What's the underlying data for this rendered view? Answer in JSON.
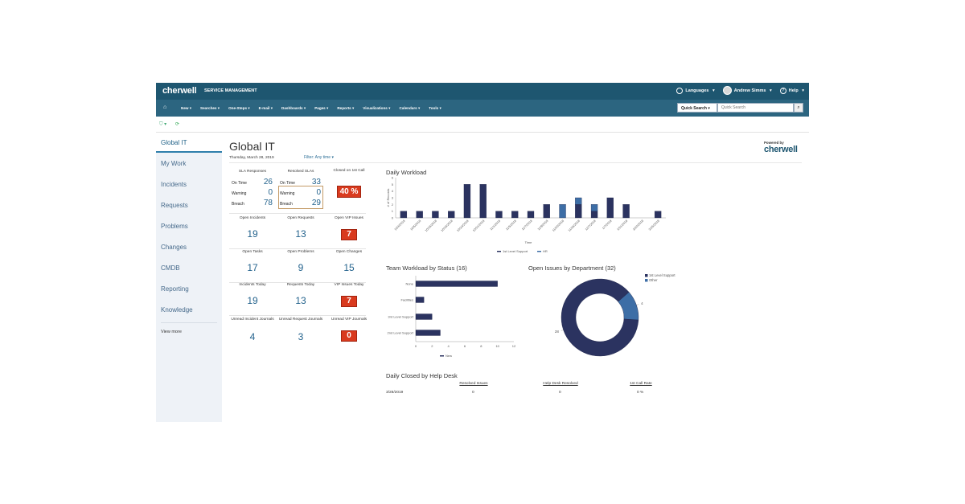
{
  "app": {
    "logo": "cherwell",
    "product": "SERVICE MANAGEMENT",
    "languages": "Languages",
    "user": "Andrew Simms",
    "help": "Help"
  },
  "nav": {
    "items": [
      "New",
      "Searches",
      "One-Steps",
      "E-mail",
      "Dashboards",
      "Pages",
      "Reports",
      "Visualizations",
      "Calendars",
      "Tools"
    ],
    "quick_search_label": "Quick Search",
    "quick_search_placeholder": "Quick Search"
  },
  "sidebar": {
    "items": [
      "Global IT",
      "My Work",
      "Incidents",
      "Requests",
      "Problems",
      "Changes",
      "CMDB",
      "Reporting",
      "Knowledge"
    ],
    "view_more": "View more"
  },
  "page": {
    "title": "Global IT",
    "date": "Thursday, March 28, 2019",
    "filter": "Filter: Any time",
    "powered_by": "Powered by",
    "powered_logo": "cherwell"
  },
  "sla": {
    "title": "SLA Responses",
    "rows": [
      {
        "label": "On Time",
        "value": "26"
      },
      {
        "label": "Warning",
        "value": "0"
      },
      {
        "label": "Breach",
        "value": "78"
      }
    ]
  },
  "resolved": {
    "title": "Resolved SLAs",
    "rows": [
      {
        "label": "On Time",
        "value": "33"
      },
      {
        "label": "Warning",
        "value": "0"
      },
      {
        "label": "Breach",
        "value": "29"
      }
    ]
  },
  "closed_first_call": {
    "label": "Closed on 1st Call",
    "value": "40 %"
  },
  "kpis": [
    {
      "label": "Open Incidents",
      "value": "19"
    },
    {
      "label": "Open Requests",
      "value": "13"
    },
    {
      "label": "Open VIP Issues",
      "value": "7"
    },
    {
      "label": "Open Tasks",
      "value": "17"
    },
    {
      "label": "Open Problems",
      "value": "9"
    },
    {
      "label": "Open Changes",
      "value": "15"
    },
    {
      "label": "Incidents Today",
      "value": "19"
    },
    {
      "label": "Requests Today",
      "value": "13"
    },
    {
      "label": "VIP Issues Today",
      "value": "7"
    },
    {
      "label": "Unread Incident Journals",
      "value": "4"
    },
    {
      "label": "Unread Request Journals",
      "value": "3"
    },
    {
      "label": "Unread VIP Journals",
      "value": "0"
    }
  ],
  "daily_closed": {
    "title": "Daily Closed by Help Desk",
    "headers": [
      "Resolved Issues",
      "Help Desk Resolved",
      "1st Call Rate"
    ],
    "rows": [
      {
        "date": "3/28/2019",
        "resolved": "0",
        "help_desk": "0",
        "rate": "0 %"
      }
    ]
  },
  "colors": {
    "navy": "#2b3360",
    "blue": "#3d6ea6",
    "topbar": "#1e5670",
    "red": "#d93a1e"
  },
  "chart_data": [
    {
      "type": "bar",
      "title": "Daily Workload",
      "xlabel": "Time",
      "ylabel": "# of Records",
      "ylim": [
        0,
        6
      ],
      "yticks": [
        0,
        1,
        2,
        3,
        4,
        5,
        6
      ],
      "categories": [
        "10/4/2018",
        "10/5/2018",
        "10/15/2018",
        "10/18/2018",
        "10/24/2018",
        "10/31/2018",
        "11/1/2018",
        "11/5/2018",
        "11/7/2018",
        "11/9/2018",
        "11/20/2018",
        "11/26/2018",
        "12/7/2018",
        "1/7/2019",
        "1/31/2019",
        "3/20/2019",
        "3/25/2019"
      ],
      "series": [
        {
          "name": "1st Level Support",
          "values": [
            1,
            1,
            1,
            1,
            5,
            5,
            1,
            1,
            1,
            2,
            0,
            2,
            1,
            3,
            2,
            0,
            1
          ]
        },
        {
          "name": "HR",
          "values": [
            0,
            0,
            0,
            0,
            0,
            0,
            0,
            0,
            0,
            0,
            2,
            1,
            1,
            0,
            0,
            0,
            0
          ]
        }
      ],
      "legend": "bottom"
    },
    {
      "type": "bar",
      "orientation": "horizontal",
      "title": "Team Workload by Status (16)",
      "categories": [
        "None",
        "Facilities",
        "3rd Level Support",
        "2nd Level Support"
      ],
      "xlim": [
        0,
        12
      ],
      "xticks": [
        0,
        2,
        4,
        6,
        8,
        10,
        12
      ],
      "series": [
        {
          "name": "New",
          "values": [
            10,
            1,
            2,
            3
          ]
        }
      ],
      "legend": "bottom"
    },
    {
      "type": "pie",
      "donut": true,
      "title": "Open Issues by Department (32)",
      "labels": [
        "1st Level Support",
        "Other"
      ],
      "values": [
        28,
        4
      ],
      "legend": "top-right"
    }
  ]
}
